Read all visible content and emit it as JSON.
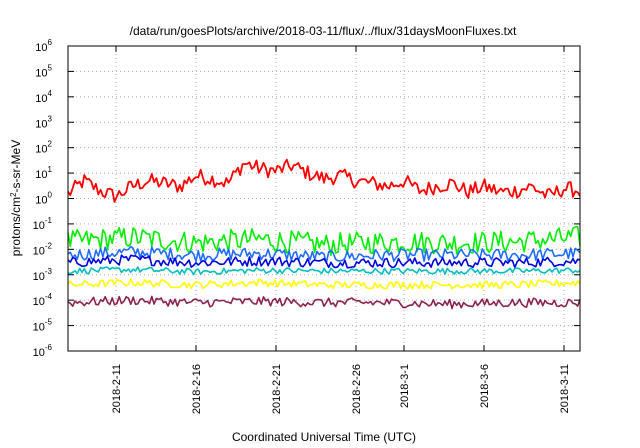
{
  "chart_data": {
    "type": "line",
    "title": "/data/run/goesPlots/archive/2018-03-11/flux/../flux/31daysMoonFluxes.txt",
    "xlabel": "Coordinated Universal Time (UTC)",
    "ylabel": "protons/cm²-s-sr-MeV",
    "y_scale": "log",
    "ylim": [
      1e-06,
      1000000.0
    ],
    "y_ticks": [
      {
        "value": 1e-06,
        "base": "10",
        "exp": "-6"
      },
      {
        "value": 1e-05,
        "base": "10",
        "exp": "-5"
      },
      {
        "value": 0.0001,
        "base": "10",
        "exp": "-4"
      },
      {
        "value": 0.001,
        "base": "10",
        "exp": "-3"
      },
      {
        "value": 0.01,
        "base": "10",
        "exp": "-2"
      },
      {
        "value": 0.1,
        "base": "10",
        "exp": "-1"
      },
      {
        "value": 1,
        "base": "10",
        "exp": "0"
      },
      {
        "value": 10,
        "base": "10",
        "exp": "1"
      },
      {
        "value": 100,
        "base": "10",
        "exp": "2"
      },
      {
        "value": 1000,
        "base": "10",
        "exp": "3"
      },
      {
        "value": 10000,
        "base": "10",
        "exp": "4"
      },
      {
        "value": 100000,
        "base": "10",
        "exp": "5"
      },
      {
        "value": 1000000,
        "base": "10",
        "exp": "6"
      }
    ],
    "xlim": [
      "2018-02-08",
      "2018-03-12"
    ],
    "x_ticks": [
      "2018-2-11",
      "2018-2-16",
      "2018-2-21",
      "2018-2-26",
      "2018-3-1",
      "2018-3-6",
      "2018-3-11"
    ],
    "grid": true,
    "series": [
      {
        "color": "#ff0000",
        "x": [
          "2018-02-08",
          "2018-02-09",
          "2018-02-10",
          "2018-02-11",
          "2018-02-12",
          "2018-02-13",
          "2018-02-14",
          "2018-02-15",
          "2018-02-16",
          "2018-02-17",
          "2018-02-18",
          "2018-02-19",
          "2018-02-20",
          "2018-02-21",
          "2018-02-22",
          "2018-02-23",
          "2018-02-24",
          "2018-02-25",
          "2018-02-26",
          "2018-02-27",
          "2018-02-28",
          "2018-03-01",
          "2018-03-02",
          "2018-03-03",
          "2018-03-04",
          "2018-03-05",
          "2018-03-06",
          "2018-03-07",
          "2018-03-08",
          "2018-03-09",
          "2018-03-10",
          "2018-03-11",
          "2018-03-12"
        ],
        "values": [
          1.5,
          5,
          2,
          1.2,
          3,
          5,
          4,
          3,
          8,
          6,
          4,
          25,
          15,
          12,
          20,
          10,
          6,
          8,
          5,
          4,
          3,
          5,
          2,
          3,
          4,
          1.8,
          3,
          1.8,
          2,
          3,
          1.2,
          2.5,
          2
        ]
      },
      {
        "color": "#00ee00",
        "x": [
          "2018-02-08",
          "2018-02-12",
          "2018-02-16",
          "2018-02-20",
          "2018-02-24",
          "2018-02-28",
          "2018-03-04",
          "2018-03-08",
          "2018-03-12"
        ],
        "values": [
          0.02,
          0.03,
          0.018,
          0.025,
          0.015,
          0.02,
          0.018,
          0.02,
          0.03
        ]
      },
      {
        "color": "#1e6cff",
        "x": [
          "2018-02-08",
          "2018-02-12",
          "2018-02-16",
          "2018-02-20",
          "2018-02-24",
          "2018-02-28",
          "2018-03-04",
          "2018-03-08",
          "2018-03-12"
        ],
        "values": [
          0.006,
          0.008,
          0.006,
          0.007,
          0.005,
          0.006,
          0.006,
          0.006,
          0.007
        ]
      },
      {
        "color": "#0000dd",
        "x": [
          "2018-02-08",
          "2018-02-12",
          "2018-02-16",
          "2018-02-20",
          "2018-02-24",
          "2018-02-28",
          "2018-03-04",
          "2018-03-08",
          "2018-03-12"
        ],
        "values": [
          0.003,
          0.004,
          0.003,
          0.0035,
          0.003,
          0.003,
          0.003,
          0.003,
          0.0035
        ]
      },
      {
        "color": "#00bfbf",
        "x": [
          "2018-02-08",
          "2018-02-12",
          "2018-02-16",
          "2018-02-20",
          "2018-02-24",
          "2018-02-28",
          "2018-03-04",
          "2018-03-08",
          "2018-03-12"
        ],
        "values": [
          0.0014,
          0.0016,
          0.0013,
          0.0015,
          0.0014,
          0.0014,
          0.0014,
          0.0014,
          0.0015
        ]
      },
      {
        "color": "#ffff00",
        "x": [
          "2018-02-08",
          "2018-02-12",
          "2018-02-16",
          "2018-02-20",
          "2018-02-24",
          "2018-02-28",
          "2018-03-04",
          "2018-03-08",
          "2018-03-12"
        ],
        "values": [
          0.0004,
          0.0005,
          0.0004,
          0.0005,
          0.0004,
          0.0004,
          0.0004,
          0.0004,
          0.0005
        ]
      },
      {
        "color": "#8b2252",
        "x": [
          "2018-02-08",
          "2018-02-12",
          "2018-02-16",
          "2018-02-20",
          "2018-02-24",
          "2018-02-28",
          "2018-03-04",
          "2018-03-08",
          "2018-03-12"
        ],
        "values": [
          8e-05,
          0.0001,
          8e-05,
          9e-05,
          8e-05,
          8e-05,
          7e-05,
          8e-05,
          8e-05
        ]
      }
    ]
  }
}
